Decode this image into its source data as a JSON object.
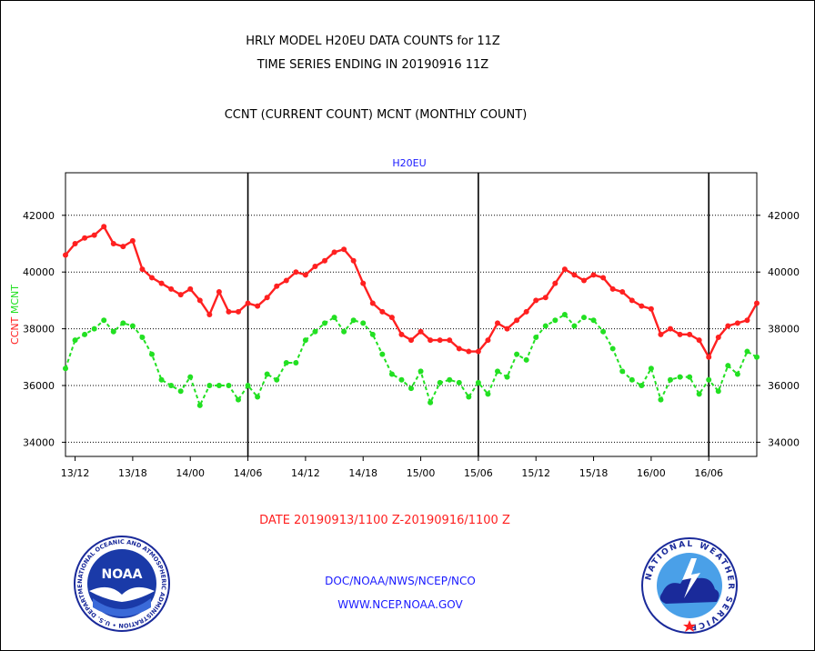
{
  "header": {
    "line1": "HRLY MODEL H20EU DATA COUNTS for 11Z",
    "line2": "TIME SERIES ENDING IN 20190916 11Z",
    "line3": "CCNT (CURRENT COUNT) MCNT (MONTHLY COUNT)"
  },
  "footer": {
    "date_range": "DATE 20190913/1100 Z-20190916/1100 Z",
    "doc": "DOC/NOAA/NWS/NCEP/NCO",
    "www": "WWW.NCEP.NOAA.GOV"
  },
  "logos": {
    "noaa_text": "NOAA",
    "noaa_ring": "NATIONAL OCEANIC AND ATMOSPHERIC ADMINISTRATION • U.S. DEPARTMENT OF COMMERCE •",
    "nws_ring": "NATIONAL WEATHER SERVICE"
  },
  "colors": {
    "ccnt": "#ff2020",
    "mcnt": "#22e022",
    "label_blue": "#1a1aff"
  },
  "chart_data": {
    "type": "line",
    "title": "H20EU",
    "ylabel": "CCNT  MCNT",
    "ylim": [
      33500,
      43500
    ],
    "yticks": [
      34000,
      36000,
      38000,
      40000,
      42000
    ],
    "ytick_labels": [
      "34000",
      "36000",
      "38000",
      "40000",
      "42000"
    ],
    "xlim": [
      0,
      72
    ],
    "xticks": [
      1,
      7,
      13,
      19,
      25,
      31,
      37,
      43,
      49,
      55,
      61,
      67
    ],
    "xtick_labels": [
      "13/12",
      "13/18",
      "14/00",
      "14/06",
      "14/12",
      "14/18",
      "15/00",
      "15/06",
      "15/12",
      "15/18",
      "16/00",
      "16/06"
    ],
    "day_lines": [
      19,
      43,
      67
    ],
    "grid": true,
    "x": [
      0,
      1,
      2,
      3,
      4,
      5,
      6,
      7,
      8,
      9,
      10,
      11,
      12,
      13,
      14,
      15,
      16,
      17,
      18,
      19,
      20,
      21,
      22,
      23,
      24,
      25,
      26,
      27,
      28,
      29,
      30,
      31,
      32,
      33,
      34,
      35,
      36,
      37,
      38,
      39,
      40,
      41,
      42,
      43,
      44,
      45,
      46,
      47,
      48,
      49,
      50,
      51,
      52,
      53,
      54,
      55,
      56,
      57,
      58,
      59,
      60,
      61,
      62,
      63,
      64,
      65,
      66,
      67,
      68,
      69,
      70,
      71,
      72
    ],
    "series": [
      {
        "name": "CCNT",
        "values": [
          40600,
          41000,
          41200,
          41300,
          41600,
          41000,
          40900,
          41100,
          40100,
          39800,
          39600,
          39400,
          39200,
          39400,
          39000,
          38500,
          39300,
          38600,
          38600,
          38900,
          38800,
          39100,
          39500,
          39700,
          40000,
          39900,
          40200,
          40400,
          40700,
          40800,
          40400,
          39600,
          38900,
          38600,
          38400,
          37800,
          37600,
          37900,
          37600,
          37600,
          37600,
          37300,
          37200,
          37200,
          37600,
          38200,
          38000,
          38300,
          38600,
          39000,
          39100,
          39600,
          40100,
          39900,
          39700,
          39900,
          39800,
          39400,
          39300,
          39000,
          38800,
          38700,
          37800,
          38000,
          37800,
          37800,
          37600,
          37000,
          37700,
          38100,
          38200,
          38300,
          38900
        ]
      },
      {
        "name": "MCNT",
        "values": [
          36600,
          37600,
          37800,
          38000,
          38300,
          37900,
          38200,
          38100,
          37700,
          37100,
          36200,
          36000,
          35800,
          36300,
          35300,
          36000,
          36000,
          36000,
          35500,
          36000,
          35600,
          36400,
          36200,
          36800,
          36800,
          37600,
          37900,
          38200,
          38400,
          37900,
          38300,
          38200,
          37800,
          37100,
          36400,
          36200,
          35900,
          36500,
          35400,
          36100,
          36200,
          36100,
          35600,
          36100,
          35700,
          36500,
          36300,
          37100,
          36900,
          37700,
          38100,
          38300,
          38500,
          38100,
          38400,
          38300,
          37900,
          37300,
          36500,
          36200,
          36000,
          36600,
          35500,
          36200,
          36300,
          36300,
          35700,
          36200,
          35800,
          36700,
          36400,
          37200,
          37000
        ]
      }
    ]
  }
}
